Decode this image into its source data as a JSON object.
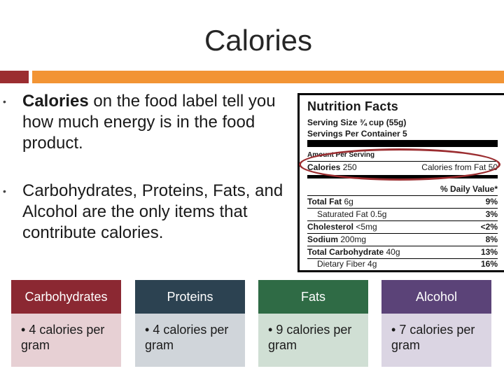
{
  "slide": {
    "title": "Calories"
  },
  "bullets": [
    {
      "bold": "Calories",
      "text": " on the food label tell you how much energy is in the food product."
    },
    {
      "text": "Carbohydrates, Proteins, Fats, and Alcohol are the only items that contribute calories."
    }
  ],
  "nutrition_label": {
    "title": "Nutrition Facts",
    "serving_size": "Serving Size ¾ cup (55g)",
    "servings_per_container": "Servings Per Container 5",
    "amount_per_serving": "Amount Per Serving",
    "calories_label": "Calories",
    "calories_value": "250",
    "calories_from_fat": "Calories from Fat 50",
    "daily_value_header": "% Daily Value*",
    "rows": [
      {
        "name": "Total Fat",
        "amount": "6g",
        "dv": "9%"
      },
      {
        "name": "Saturated Fat",
        "amount": "0.5g",
        "dv": "3%"
      },
      {
        "name": "Cholesterol",
        "amount": "<5mg",
        "dv": "<2%"
      },
      {
        "name": "Sodium",
        "amount": "200mg",
        "dv": "8%"
      },
      {
        "name": "Total Carbohydrate",
        "amount": "40g",
        "dv": "13%"
      },
      {
        "name": "Dietary Fiber",
        "amount": "4g",
        "dv": "16%"
      }
    ]
  },
  "cards": [
    {
      "title": "Carbohydrates",
      "item": "4 calories per gram"
    },
    {
      "title": "Proteins",
      "item": "4 calories per gram"
    },
    {
      "title": "Fats",
      "item": "9 calories per gram"
    },
    {
      "title": "Alcohol",
      "item": "7 calories per gram"
    }
  ],
  "colors": {
    "accent_red": "#9b2d30",
    "accent_orange": "#f29434"
  }
}
